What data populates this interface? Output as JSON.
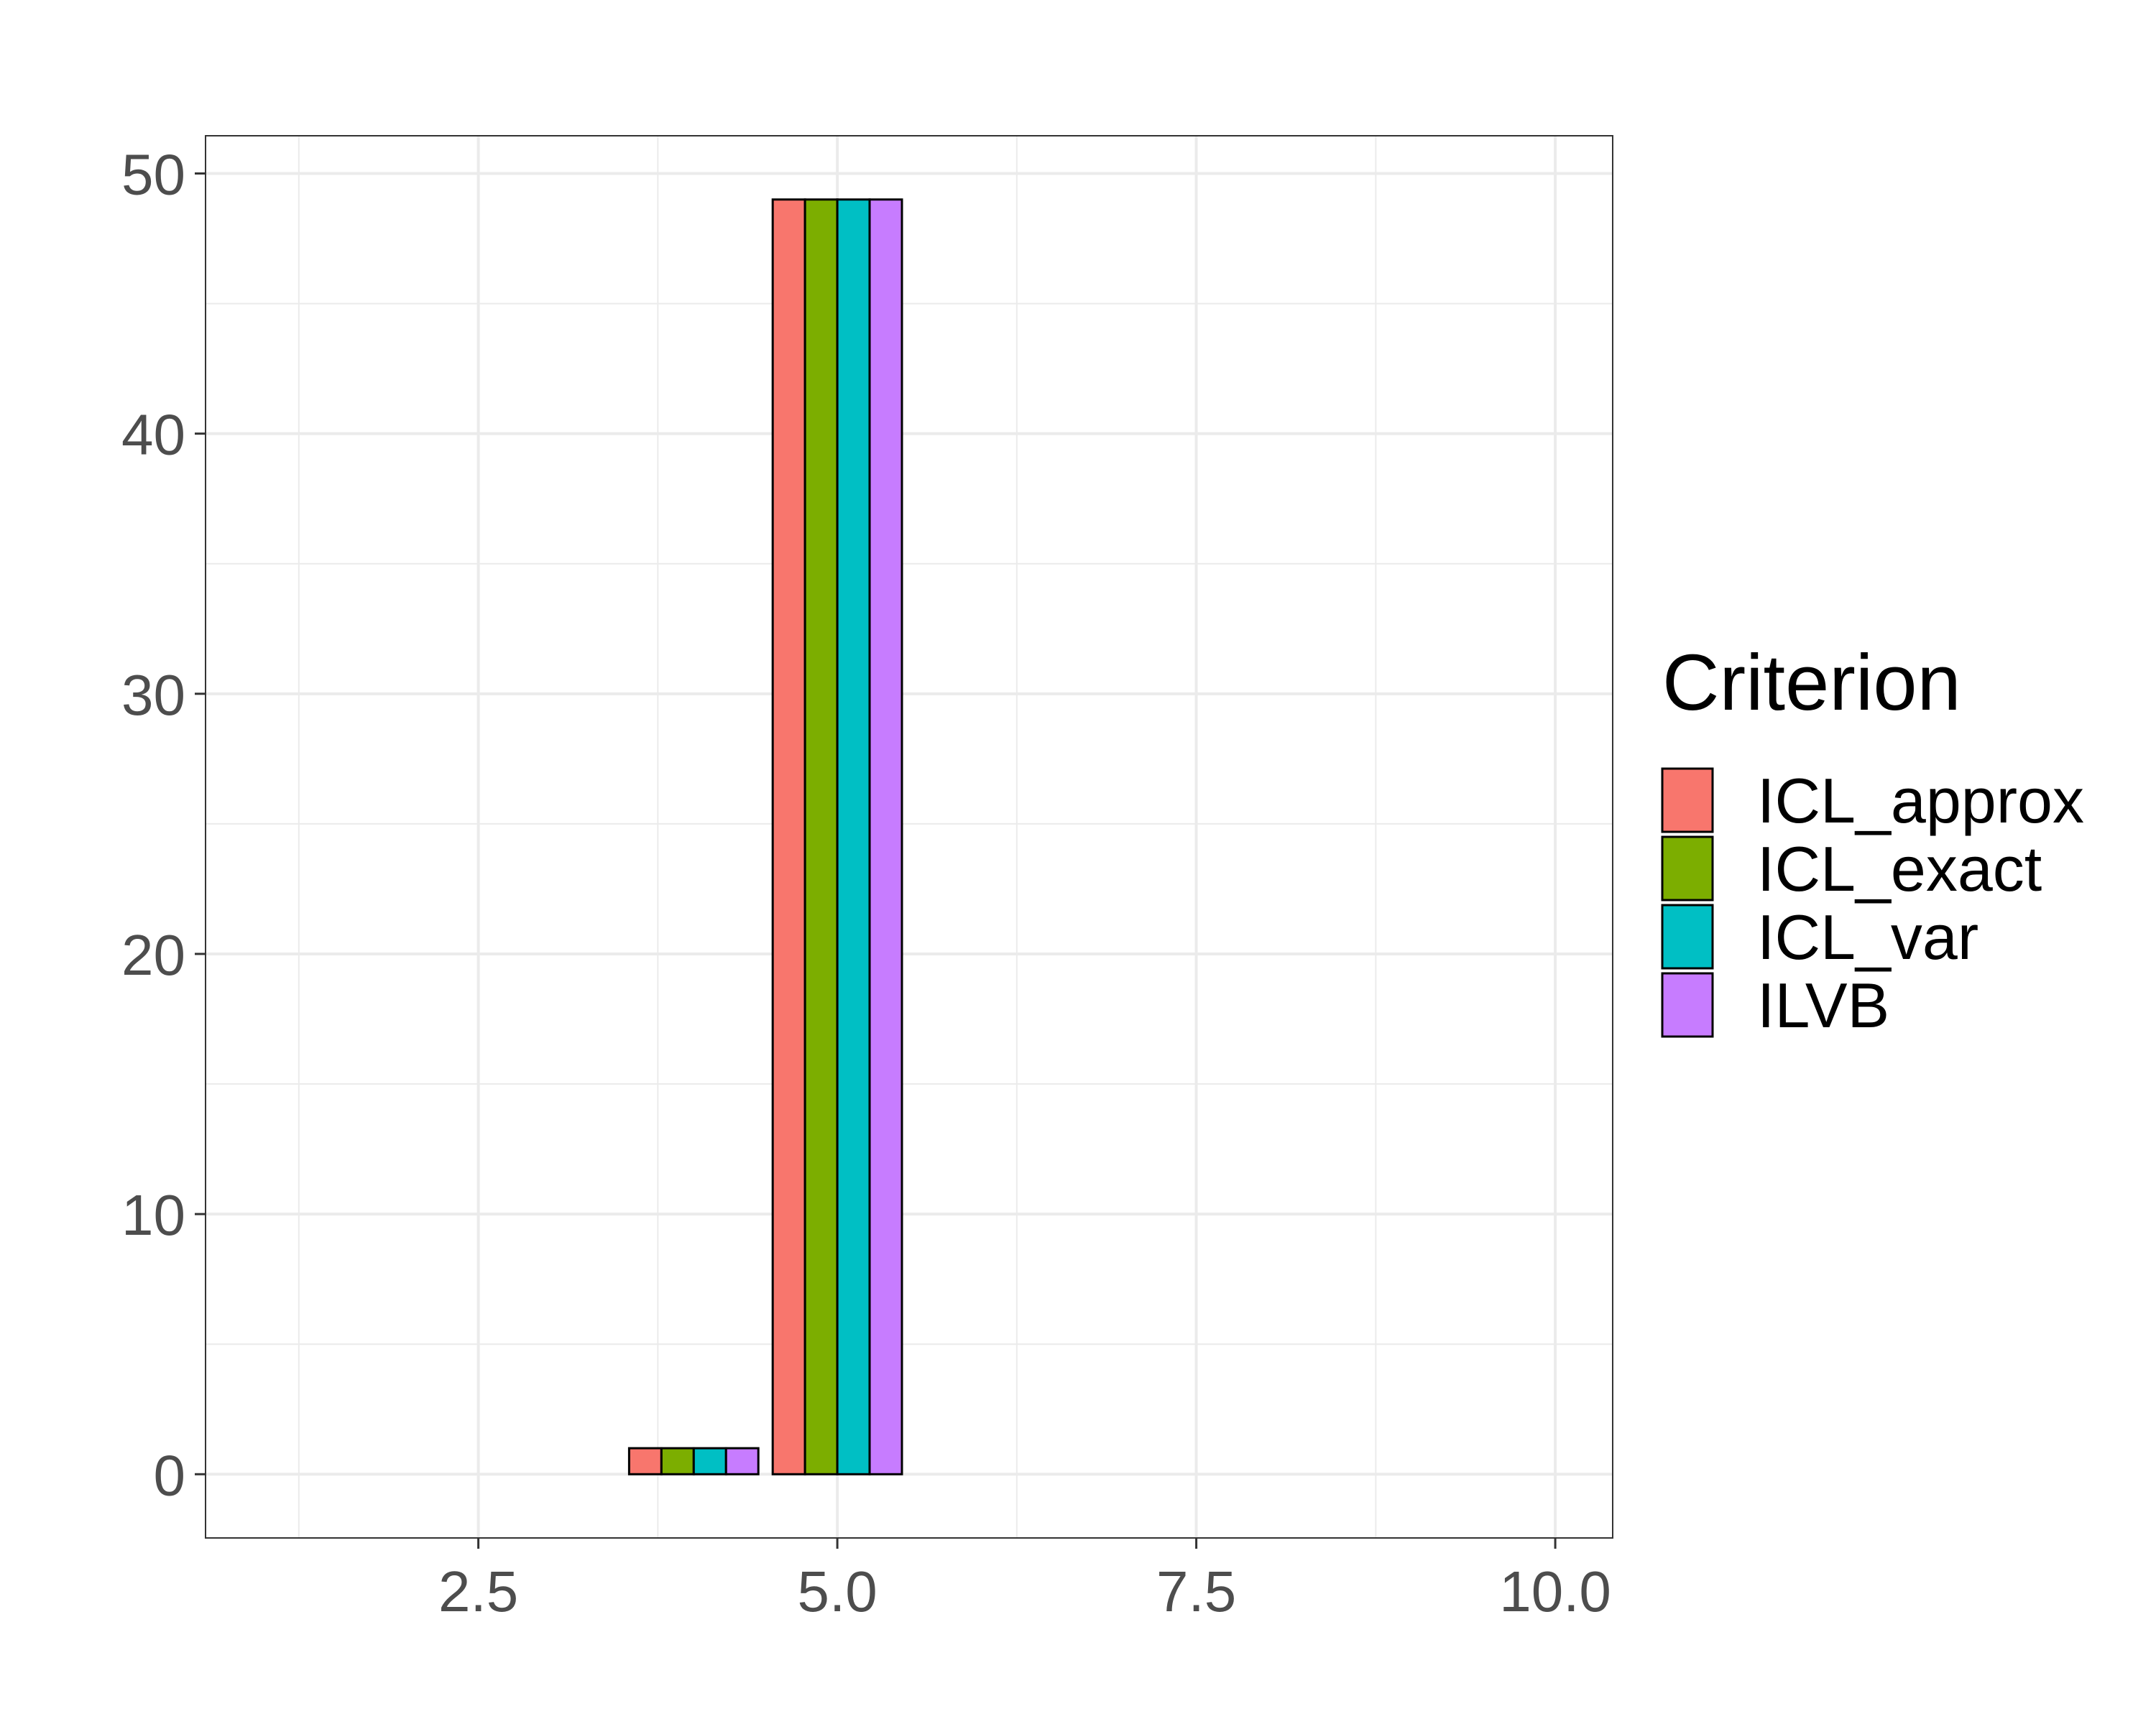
{
  "chart_data": {
    "type": "bar",
    "title": "",
    "xlabel": "",
    "ylabel": "",
    "xlim": [
      0.6,
      10.4
    ],
    "ylim": [
      -2.45,
      51.45
    ],
    "x_ticks": [
      2.5,
      5.0,
      7.5,
      10.0
    ],
    "x_tick_labels": [
      "2.5",
      "5.0",
      "7.5",
      "10.0"
    ],
    "y_ticks": [
      0,
      10,
      20,
      30,
      40,
      50
    ],
    "y_tick_labels": [
      "0",
      "10",
      "20",
      "30",
      "40",
      "50"
    ],
    "grid": true,
    "legend": {
      "title": "Criterion",
      "position": "right"
    },
    "x": [
      4,
      5
    ],
    "series": [
      {
        "name": "ICL_approx",
        "color": "#F8766D",
        "values": [
          1,
          49
        ]
      },
      {
        "name": "ICL_exact",
        "color": "#7CAE00",
        "values": [
          1,
          49
        ]
      },
      {
        "name": "ICL_var",
        "color": "#00BFC4",
        "values": [
          1,
          49
        ]
      },
      {
        "name": "ILVB",
        "color": "#C77CFF",
        "values": [
          1,
          49
        ]
      }
    ]
  }
}
